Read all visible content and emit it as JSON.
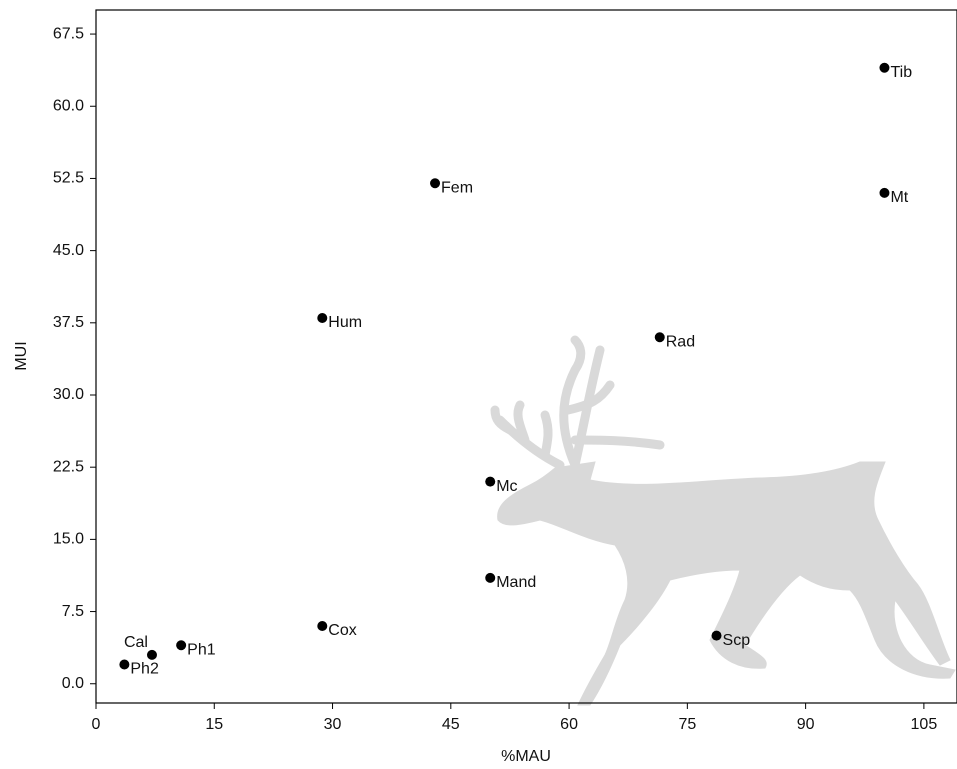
{
  "chart_data": {
    "type": "scatter",
    "x_label": "%MAU",
    "y_label": "MUI",
    "color": "#000000",
    "labels": [
      "Tib",
      "Mt",
      "Fem",
      "Hum",
      "Rad",
      "Mc",
      "Mand",
      "Cox",
      "Scp",
      "Ph1",
      "Cal",
      "Ph2"
    ],
    "x": [
      100,
      100,
      43,
      28.7,
      71.5,
      50,
      50,
      28.7,
      78.7,
      10.8,
      7.1,
      3.6
    ],
    "values": [
      64,
      51,
      52,
      38,
      36,
      21,
      11,
      6,
      5,
      4,
      3,
      2
    ],
    "xlim": [
      0,
      109.2
    ],
    "ylim": [
      -2,
      70
    ],
    "xticks": [
      0,
      15,
      30,
      45,
      60,
      75,
      90,
      105
    ],
    "yticks": [
      {
        "value": 0,
        "label": "0.0"
      },
      7.5,
      {
        "value": 15,
        "label": "15.0"
      },
      22.5,
      {
        "value": 30,
        "label": "30.0"
      },
      37.5,
      {
        "value": 45,
        "label": "45.0"
      },
      52.5,
      {
        "value": 60,
        "label": "60.0"
      },
      67.5
    ]
  }
}
